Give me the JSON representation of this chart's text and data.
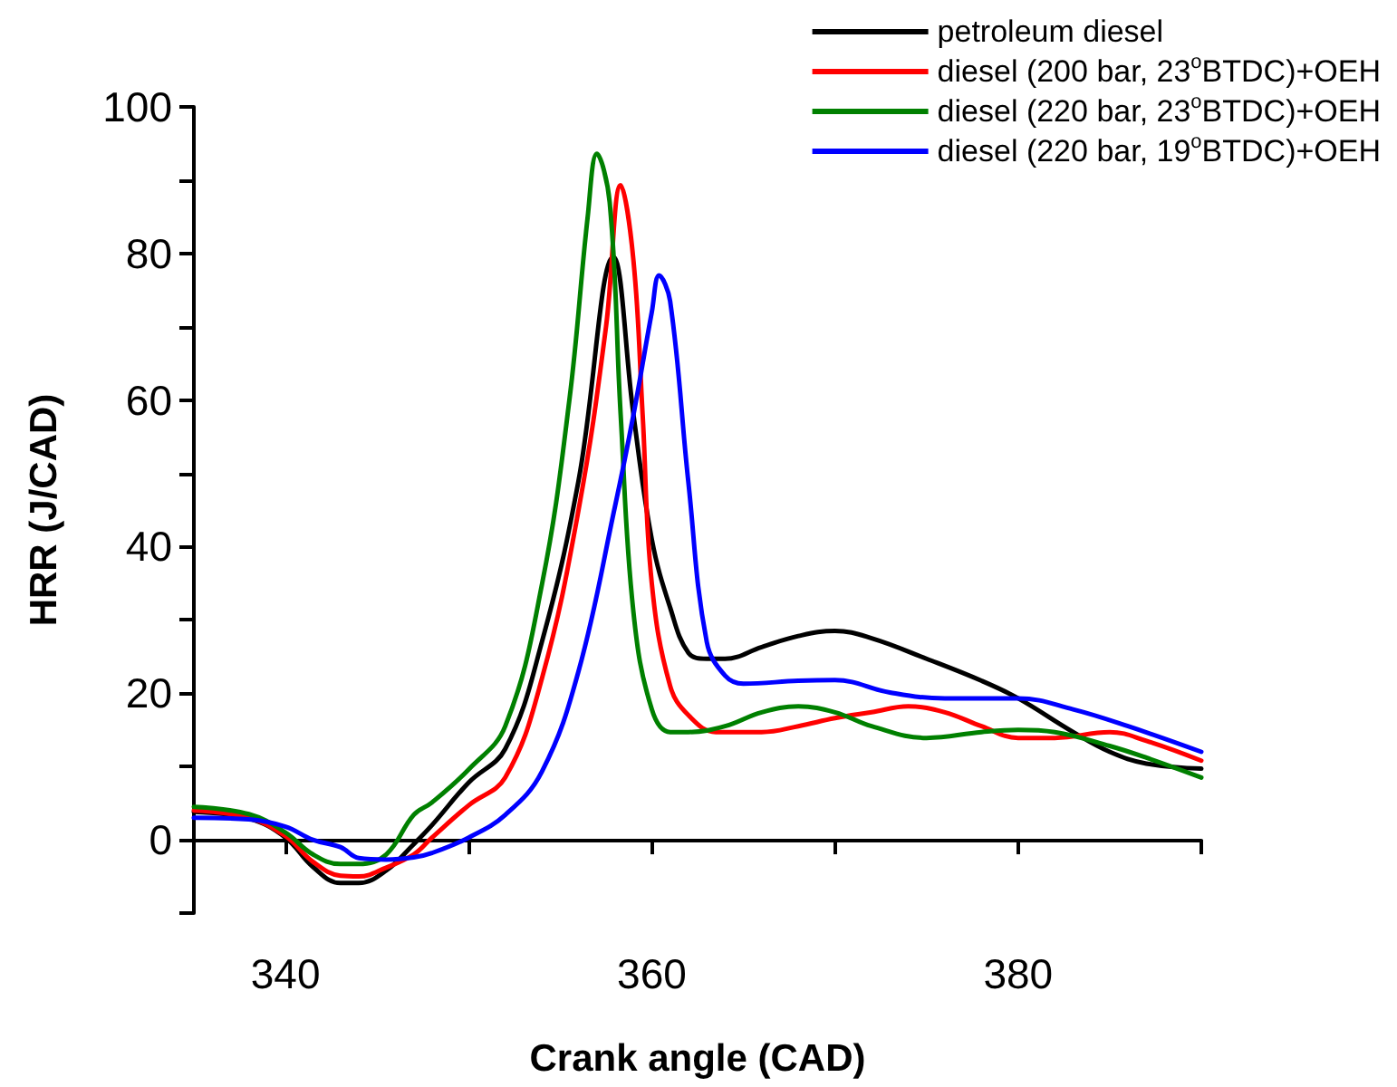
{
  "chart_data": {
    "type": "line",
    "xlabel": "Crank angle (CAD)",
    "ylabel": "HRR (J/CAD)",
    "xlim": [
      335,
      390
    ],
    "ylim": [
      -10,
      100
    ],
    "xticks": [
      340,
      {
        "value": 350,
        "label": null
      },
      360,
      {
        "value": 370,
        "label": null
      },
      380,
      {
        "value": 390,
        "label": null
      }
    ],
    "yticks": [
      {
        "value": -10,
        "label": null
      },
      0,
      {
        "value": 10,
        "label": null
      },
      20,
      {
        "value": 30,
        "label": null
      },
      40,
      {
        "value": 50,
        "label": null
      },
      60,
      {
        "value": 70,
        "label": null
      },
      80,
      {
        "value": 90,
        "label": null
      },
      100
    ],
    "legend": "top right",
    "marker": "none",
    "line_style": "solid",
    "series": [
      {
        "name": "petroleum diesel",
        "color": "#000000",
        "x": [
          335,
          338,
          340,
          341.5,
          343,
          344,
          345.5,
          347,
          348,
          350,
          352,
          354,
          356,
          357.9,
          359,
          360,
          361,
          362,
          363,
          364,
          366,
          368,
          370,
          372,
          375,
          378,
          380,
          383,
          385,
          387,
          390
        ],
        "values": [
          3.8,
          2.9,
          0.3,
          -3.7,
          -5.9,
          -5.9,
          -4.2,
          -0.6,
          2,
          7.8,
          12.4,
          27,
          49,
          79.5,
          58,
          41,
          31.7,
          25.5,
          24.7,
          24.7,
          26.3,
          27.8,
          28.5,
          27.5,
          24.7,
          21.7,
          19.3,
          14.7,
          12,
          10.4,
          9.7
        ]
      },
      {
        "name": "diesel (200 bar, 23$^{o}$BTDC)+OEH",
        "color": "#ff0000",
        "x": [
          335,
          338,
          340,
          341.5,
          343,
          344,
          345.5,
          347,
          348,
          350,
          352,
          354,
          356,
          357.5,
          358.3,
          359,
          359.5,
          360,
          361,
          362,
          363.5,
          366,
          368,
          370,
          372,
          374,
          376,
          378,
          380,
          382,
          385,
          387,
          390
        ],
        "values": [
          4,
          3,
          0.5,
          -3,
          -4.9,
          -5,
          -3.8,
          -2,
          0.3,
          4.7,
          8.5,
          22,
          45,
          70,
          89.3,
          79,
          58,
          35,
          21,
          17,
          14.7,
          14.7,
          15.5,
          16.6,
          17.4,
          18.2,
          17.4,
          15.5,
          13.9,
          13.9,
          14.7,
          13.5,
          10.8
        ]
      },
      {
        "name": "diesel (220 bar, 23$^{o}$BTDC)+OEH",
        "color": "#008000",
        "x": [
          335,
          338,
          340,
          341.5,
          343,
          344,
          345.5,
          347,
          348,
          350,
          352,
          354,
          355.5,
          356.5,
          357,
          357.7,
          358.3,
          359,
          360,
          361,
          362,
          364,
          366,
          368,
          370,
          372,
          375,
          378,
          380,
          382,
          385,
          387,
          390
        ],
        "values": [
          4.5,
          3.5,
          1,
          -2,
          -3.3,
          -3.3,
          -2,
          3.4,
          5.1,
          9.6,
          15.5,
          34.8,
          60,
          85,
          93.6,
          87,
          58,
          31,
          17.8,
          14.7,
          14.7,
          15.5,
          17.4,
          18.2,
          17.4,
          15.5,
          13.9,
          14.7,
          15,
          14.7,
          12.8,
          11.2,
          8.5
        ]
      },
      {
        "name": "diesel (220 bar, 19$^{o}$BTDC)+OEH",
        "color": "#0000ff",
        "x": [
          335,
          338,
          340,
          341.5,
          343,
          344,
          345.5,
          347,
          348,
          350,
          352,
          354,
          356,
          358,
          359,
          360,
          360.4,
          361,
          362,
          363,
          364,
          365,
          368,
          370,
          373,
          376,
          380,
          383,
          386,
          390
        ],
        "values": [
          3,
          2.8,
          1.8,
          0,
          -1,
          -2.5,
          -2.7,
          -2.4,
          -1.8,
          0.3,
          3.4,
          9.3,
          23,
          45.6,
          58,
          72,
          77,
          73.5,
          48.7,
          27,
          22.4,
          21.3,
          21.7,
          21.8,
          20.1,
          19.3,
          19.3,
          17.8,
          15.5,
          12
        ]
      }
    ]
  }
}
